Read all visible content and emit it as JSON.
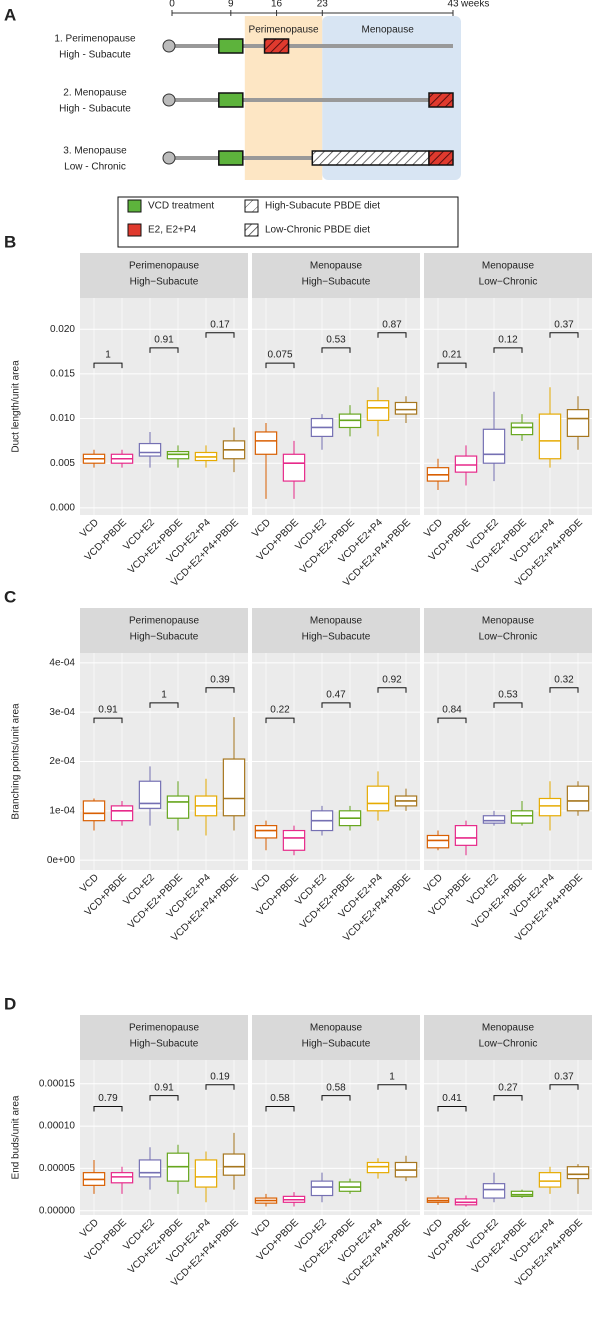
{
  "panel_a": {
    "label": "A",
    "weeks": [
      0,
      9,
      16,
      23,
      43
    ],
    "weeks_unit": "weeks",
    "phases": [
      "Perimenopause",
      "Menopause"
    ],
    "rows": [
      [
        "1. Perimenopause",
        "High - Subacute"
      ],
      [
        "2. Menopause",
        "High - Subacute"
      ],
      [
        "3. Menopause",
        "Low - Chronic"
      ]
    ],
    "legend": [
      "VCD treatment",
      "E2, E2+P4",
      "High-Subacute PBDE diet",
      "Low-Chronic PBDE diet"
    ]
  },
  "chart_data": [
    {
      "type": "box",
      "panel": "B",
      "ylabel": "Duct length/unit area",
      "categories": [
        "VCD",
        "VCD+PBDE",
        "VCD+E2",
        "VCD+E2+PBDE",
        "VCD+E2+P4",
        "VCD+E2+P4+PBDE"
      ],
      "colors": [
        "#d95f02",
        "#e7298a",
        "#7570b3",
        "#66a61e",
        "#e6ab02",
        "#a6761d"
      ],
      "ylim": [
        -0.0008,
        0.0235
      ],
      "yticks": [
        {
          "value": 0,
          "label": "0.000"
        },
        {
          "value": 0.005,
          "label": "0.005"
        },
        {
          "value": 0.01,
          "label": "0.010"
        },
        {
          "value": 0.015,
          "label": "0.015"
        },
        {
          "value": 0.02,
          "label": "0.020"
        }
      ],
      "facets": [
        {
          "title": [
            "Perimenopause",
            "High−Subacute"
          ],
          "pvalues": [
            1,
            0.91,
            0.17
          ],
          "boxes": [
            [
              0.0045,
              0.005,
              0.0055,
              0.006,
              0.0065
            ],
            [
              0.0045,
              0.005,
              0.0055,
              0.006,
              0.0065
            ],
            [
              0.0045,
              0.0058,
              0.0062,
              0.0072,
              0.0085
            ],
            [
              0.0045,
              0.0055,
              0.006,
              0.0063,
              0.007
            ],
            [
              0.0045,
              0.0053,
              0.0057,
              0.0062,
              0.007
            ],
            [
              0.004,
              0.0055,
              0.0065,
              0.0075,
              0.009
            ]
          ]
        },
        {
          "title": [
            "Menopause",
            "High−Subacute"
          ],
          "pvalues": [
            0.075,
            0.53,
            0.87
          ],
          "boxes": [
            [
              0.001,
              0.006,
              0.0075,
              0.0085,
              0.0095
            ],
            [
              0.001,
              0.003,
              0.005,
              0.006,
              0.0075
            ],
            [
              0.0065,
              0.008,
              0.009,
              0.01,
              0.0105
            ],
            [
              0.008,
              0.009,
              0.0098,
              0.0105,
              0.0115
            ],
            [
              0.008,
              0.0098,
              0.0112,
              0.012,
              0.0135
            ],
            [
              0.0095,
              0.0105,
              0.011,
              0.0118,
              0.0125
            ]
          ]
        },
        {
          "title": [
            "Menopause",
            "Low−Chronic"
          ],
          "pvalues": [
            0.21,
            0.12,
            0.37
          ],
          "boxes": [
            [
              0.002,
              0.003,
              0.0037,
              0.0045,
              0.0055
            ],
            [
              0.0025,
              0.004,
              0.0048,
              0.0058,
              0.007
            ],
            [
              0.003,
              0.005,
              0.006,
              0.0088,
              0.013
            ],
            [
              0.0075,
              0.0082,
              0.009,
              0.0095,
              0.0105
            ],
            [
              0.0045,
              0.0055,
              0.0075,
              0.0105,
              0.0135
            ],
            [
              0.0065,
              0.008,
              0.01,
              0.011,
              0.0125
            ]
          ]
        }
      ]
    },
    {
      "type": "box",
      "panel": "C",
      "ylabel": "Branching points/unit area",
      "categories": [
        "VCD",
        "VCD+PBDE",
        "VCD+E2",
        "VCD+E2+PBDE",
        "VCD+E2+P4",
        "VCD+E2+P4+PBDE"
      ],
      "colors": [
        "#d95f02",
        "#e7298a",
        "#7570b3",
        "#66a61e",
        "#e6ab02",
        "#a6761d"
      ],
      "ylim": [
        -2e-05,
        0.00042
      ],
      "yticks": [
        {
          "value": 0,
          "label": "0e+00"
        },
        {
          "value": 0.0001,
          "label": "1e-04"
        },
        {
          "value": 0.0002,
          "label": "2e-04"
        },
        {
          "value": 0.0003,
          "label": "3e-04"
        },
        {
          "value": 0.0004,
          "label": "4e-04"
        }
      ],
      "facets": [
        {
          "title": [
            "Perimenopause",
            "High−Subacute"
          ],
          "pvalues": [
            0.91,
            1,
            0.39
          ],
          "boxes": [
            [
              6e-05,
              8e-05,
              9.5e-05,
              0.00012,
              0.000125
            ],
            [
              7e-05,
              8e-05,
              0.0001,
              0.00011,
              0.00012
            ],
            [
              7e-05,
              0.000105,
              0.000115,
              0.00016,
              0.00019
            ],
            [
              6e-05,
              8.5e-05,
              0.000118,
              0.00013,
              0.00016
            ],
            [
              5e-05,
              9e-05,
              0.00011,
              0.00013,
              0.000165
            ],
            [
              6e-05,
              9e-05,
              0.000125,
              0.000205,
              0.00029
            ]
          ]
        },
        {
          "title": [
            "Menopause",
            "High−Subacute"
          ],
          "pvalues": [
            0.22,
            0.47,
            0.92
          ],
          "boxes": [
            [
              2e-05,
              4.5e-05,
              6e-05,
              7e-05,
              8e-05
            ],
            [
              1e-05,
              2e-05,
              4.5e-05,
              6e-05,
              7e-05
            ],
            [
              5e-05,
              6e-05,
              8e-05,
              0.0001,
              0.00011
            ],
            [
              6e-05,
              7e-05,
              8.5e-05,
              0.0001,
              0.00011
            ],
            [
              8e-05,
              0.0001,
              0.000115,
              0.00015,
              0.00018
            ],
            [
              0.0001,
              0.00011,
              0.00012,
              0.00013,
              0.000145
            ]
          ]
        },
        {
          "title": [
            "Menopause",
            "Low−Chronic"
          ],
          "pvalues": [
            0.84,
            0.53,
            0.32
          ],
          "boxes": [
            [
              2e-05,
              2.5e-05,
              4e-05,
              5e-05,
              6e-05
            ],
            [
              1e-05,
              3e-05,
              4.5e-05,
              7e-05,
              8e-05
            ],
            [
              7e-05,
              7.5e-05,
              8e-05,
              9e-05,
              0.0001
            ],
            [
              7e-05,
              7.5e-05,
              9e-05,
              0.0001,
              0.00012
            ],
            [
              6e-05,
              9e-05,
              0.00011,
              0.000125,
              0.00016
            ],
            [
              9e-05,
              0.0001,
              0.00012,
              0.00015,
              0.00016
            ]
          ]
        }
      ]
    },
    {
      "type": "box",
      "panel": "D",
      "ylabel": "End buds/unit area",
      "categories": [
        "VCD",
        "VCD+PBDE",
        "VCD+E2",
        "VCD+E2+PBDE",
        "VCD+E2+P4",
        "VCD+E2+P4+PBDE"
      ],
      "colors": [
        "#d95f02",
        "#e7298a",
        "#7570b3",
        "#66a61e",
        "#e6ab02",
        "#a6761d"
      ],
      "ylim": [
        -5e-06,
        0.000178
      ],
      "yticks": [
        {
          "value": 0,
          "label": "0.00000"
        },
        {
          "value": 5e-05,
          "label": "0.00005"
        },
        {
          "value": 0.0001,
          "label": "0.00010"
        },
        {
          "value": 0.00015,
          "label": "0.00015"
        }
      ],
      "facets": [
        {
          "title": [
            "Perimenopause",
            "High−Subacute"
          ],
          "pvalues": [
            0.79,
            0.91,
            0.19
          ],
          "boxes": [
            [
              2e-05,
              3e-05,
              3.7e-05,
              4.5e-05,
              6e-05
            ],
            [
              2e-05,
              3.3e-05,
              4e-05,
              4.5e-05,
              5.2e-05
            ],
            [
              2.5e-05,
              4e-05,
              4.5e-05,
              6e-05,
              7.5e-05
            ],
            [
              2e-05,
              3.5e-05,
              5.2e-05,
              6.8e-05,
              7.8e-05
            ],
            [
              1e-05,
              2.8e-05,
              4e-05,
              6e-05,
              7e-05
            ],
            [
              2.5e-05,
              4.2e-05,
              5.2e-05,
              6.7e-05,
              9.2e-05
            ]
          ]
        },
        {
          "title": [
            "Menopause",
            "High−Subacute"
          ],
          "pvalues": [
            0.58,
            0.58,
            1
          ],
          "boxes": [
            [
              5e-06,
              9e-06,
              1.2e-05,
              1.5e-05,
              2e-05
            ],
            [
              5e-06,
              1e-05,
              1.3e-05,
              1.7e-05,
              2.2e-05
            ],
            [
              1e-05,
              1.8e-05,
              2.8e-05,
              3.5e-05,
              4.5e-05
            ],
            [
              2e-05,
              2.3e-05,
              2.8e-05,
              3.4e-05,
              3.8e-05
            ],
            [
              3.8e-05,
              4.5e-05,
              5.2e-05,
              5.7e-05,
              6.2e-05
            ],
            [
              3.5e-05,
              4e-05,
              4.8e-05,
              5.7e-05,
              6.5e-05
            ]
          ]
        },
        {
          "title": [
            "Menopause",
            "Low−Chronic"
          ],
          "pvalues": [
            0.41,
            0.27,
            0.37
          ],
          "boxes": [
            [
              7e-06,
              1e-05,
              1.2e-05,
              1.5e-05,
              1.8e-05
            ],
            [
              5e-06,
              7e-06,
              1e-05,
              1.4e-05,
              1.8e-05
            ],
            [
              1e-05,
              1.5e-05,
              2.5e-05,
              3.2e-05,
              4.5e-05
            ],
            [
              1.5e-05,
              1.7e-05,
              1.9e-05,
              2.3e-05,
              2.5e-05
            ],
            [
              2e-05,
              2.8e-05,
              3.5e-05,
              4.5e-05,
              5.2e-05
            ],
            [
              2e-05,
              3.8e-05,
              4.3e-05,
              5.2e-05,
              5.5e-05
            ]
          ]
        }
      ]
    }
  ]
}
